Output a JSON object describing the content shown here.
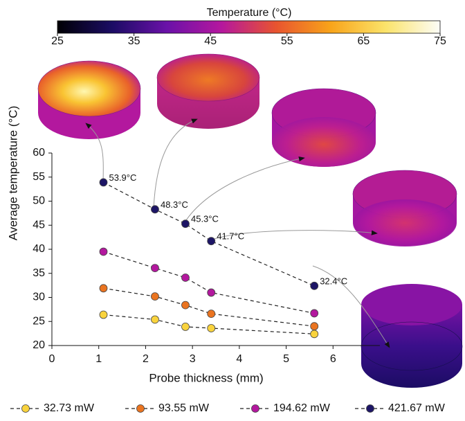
{
  "chart_data": {
    "type": "line",
    "xlabel": "Probe thickness (mm)",
    "ylabel": "Average temperature (°C)",
    "x": [
      1.1,
      2.2,
      2.85,
      3.4,
      5.6
    ],
    "xlim": [
      0,
      7
    ],
    "xticks": [
      0,
      1,
      2,
      3,
      4,
      5,
      6
    ],
    "ylim": [
      20,
      60
    ],
    "yticks": [
      20,
      25,
      30,
      35,
      40,
      45,
      50,
      55,
      60
    ],
    "series": [
      {
        "name": "32.73 mW",
        "color": "#f9d33d",
        "values": [
          26.4,
          25.4,
          23.9,
          23.6,
          22.4
        ]
      },
      {
        "name": "93.55 mW",
        "color": "#ea7420",
        "values": [
          31.9,
          30.2,
          28.4,
          26.6,
          24.0
        ]
      },
      {
        "name": "194.62 mW",
        "color": "#b3189e",
        "values": [
          39.5,
          36.1,
          34.1,
          31.0,
          26.7
        ]
      },
      {
        "name": "421.67 mW",
        "color": "#1d1566",
        "values": [
          53.9,
          48.3,
          45.3,
          41.7,
          32.4
        ],
        "value_labels": [
          "53.9°C",
          "48.3°C",
          "45.3°C",
          "41.7°C",
          "32.4°C"
        ]
      }
    ],
    "colorbar": {
      "label": "Temperature (°C)",
      "lim": [
        25,
        75
      ],
      "ticks": [
        25,
        35,
        45,
        55,
        65,
        75
      ],
      "colors": [
        "#000004",
        "#1b0c64",
        "#6a11a8",
        "#b5179e",
        "#e8542f",
        "#f8a41a",
        "#fbe36a",
        "#fcfdf8"
      ]
    }
  }
}
